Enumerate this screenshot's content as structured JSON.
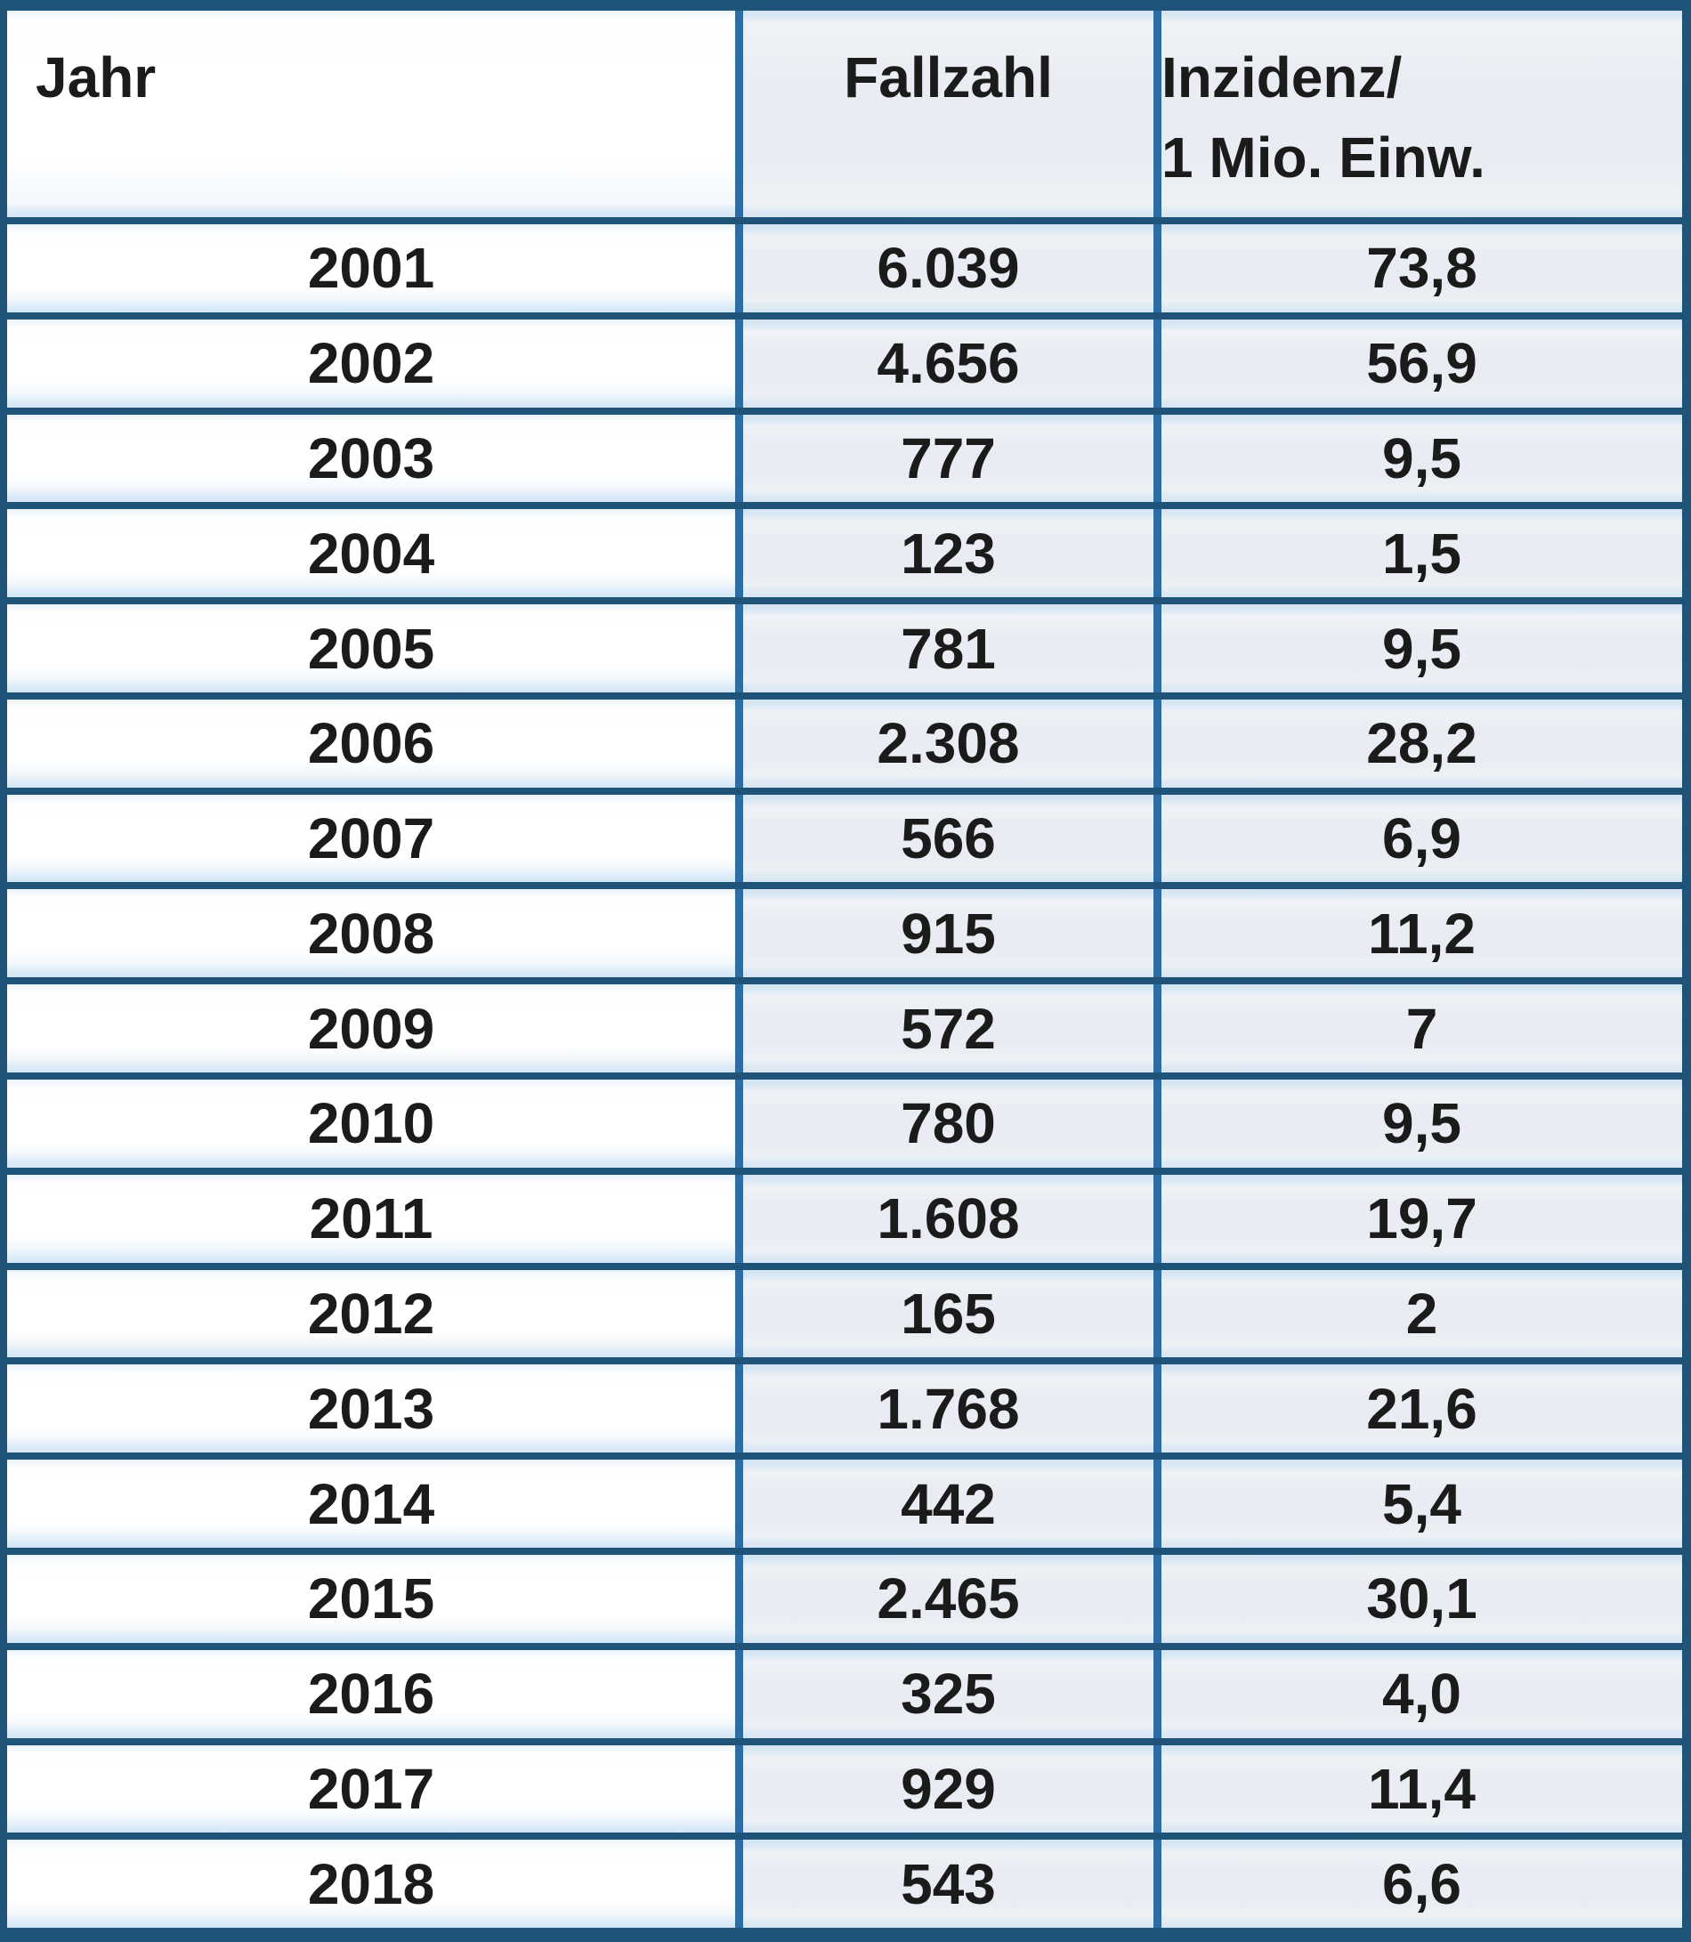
{
  "table": {
    "header": {
      "jahr": "Jahr",
      "fallzahl": "Fallzahl",
      "inzidenz_line1": "Inzidenz/",
      "inzidenz_line2": "1 Mio. Einw."
    },
    "rows": [
      {
        "jahr": "2001",
        "fallzahl": "6.039",
        "inzidenz": "73,8"
      },
      {
        "jahr": "2002",
        "fallzahl": "4.656",
        "inzidenz": "56,9"
      },
      {
        "jahr": "2003",
        "fallzahl": "777",
        "inzidenz": "9,5"
      },
      {
        "jahr": "2004",
        "fallzahl": "123",
        "inzidenz": "1,5"
      },
      {
        "jahr": "2005",
        "fallzahl": "781",
        "inzidenz": "9,5"
      },
      {
        "jahr": "2006",
        "fallzahl": "2.308",
        "inzidenz": "28,2"
      },
      {
        "jahr": "2007",
        "fallzahl": "566",
        "inzidenz": "6,9"
      },
      {
        "jahr": "2008",
        "fallzahl": "915",
        "inzidenz": "11,2"
      },
      {
        "jahr": "2009",
        "fallzahl": "572",
        "inzidenz": "7"
      },
      {
        "jahr": "2010",
        "fallzahl": "780",
        "inzidenz": "9,5"
      },
      {
        "jahr": "2011",
        "fallzahl": "1.608",
        "inzidenz": "19,7"
      },
      {
        "jahr": "2012",
        "fallzahl": "165",
        "inzidenz": "2"
      },
      {
        "jahr": "2013",
        "fallzahl": "1.768",
        "inzidenz": "21,6"
      },
      {
        "jahr": "2014",
        "fallzahl": "442",
        "inzidenz": "5,4"
      },
      {
        "jahr": "2015",
        "fallzahl": "2.465",
        "inzidenz": "30,1"
      },
      {
        "jahr": "2016",
        "fallzahl": "325",
        "inzidenz": "4,0"
      },
      {
        "jahr": "2017",
        "fallzahl": "929",
        "inzidenz": "11,4"
      },
      {
        "jahr": "2018",
        "fallzahl": "543",
        "inzidenz": "6,6"
      }
    ]
  },
  "colors": {
    "horizontal_rule": "#1f5377",
    "vertical_rule": "#2e6da4",
    "cell_edge_strip": "#d9e8f6",
    "year_column_fill": "#ffffff",
    "value_column_fill": "#e9edf3",
    "text": "#1b1b1b"
  },
  "chart_data": {
    "type": "table",
    "columns": [
      "Jahr",
      "Fallzahl",
      "Inzidenz/ 1 Mio. Einw."
    ],
    "rows": [
      [
        2001,
        6039,
        73.8
      ],
      [
        2002,
        4656,
        56.9
      ],
      [
        2003,
        777,
        9.5
      ],
      [
        2004,
        123,
        1.5
      ],
      [
        2005,
        781,
        9.5
      ],
      [
        2006,
        2308,
        28.2
      ],
      [
        2007,
        566,
        6.9
      ],
      [
        2008,
        915,
        11.2
      ],
      [
        2009,
        572,
        7
      ],
      [
        2010,
        780,
        9.5
      ],
      [
        2011,
        1608,
        19.7
      ],
      [
        2012,
        165,
        2
      ],
      [
        2013,
        1768,
        21.6
      ],
      [
        2014,
        442,
        5.4
      ],
      [
        2015,
        2465,
        30.1
      ],
      [
        2016,
        325,
        4.0
      ],
      [
        2017,
        929,
        11.4
      ],
      [
        2018,
        543,
        6.6
      ]
    ],
    "notes": "German number formatting in display strings: '.' thousands separator, ',' decimal comma"
  }
}
